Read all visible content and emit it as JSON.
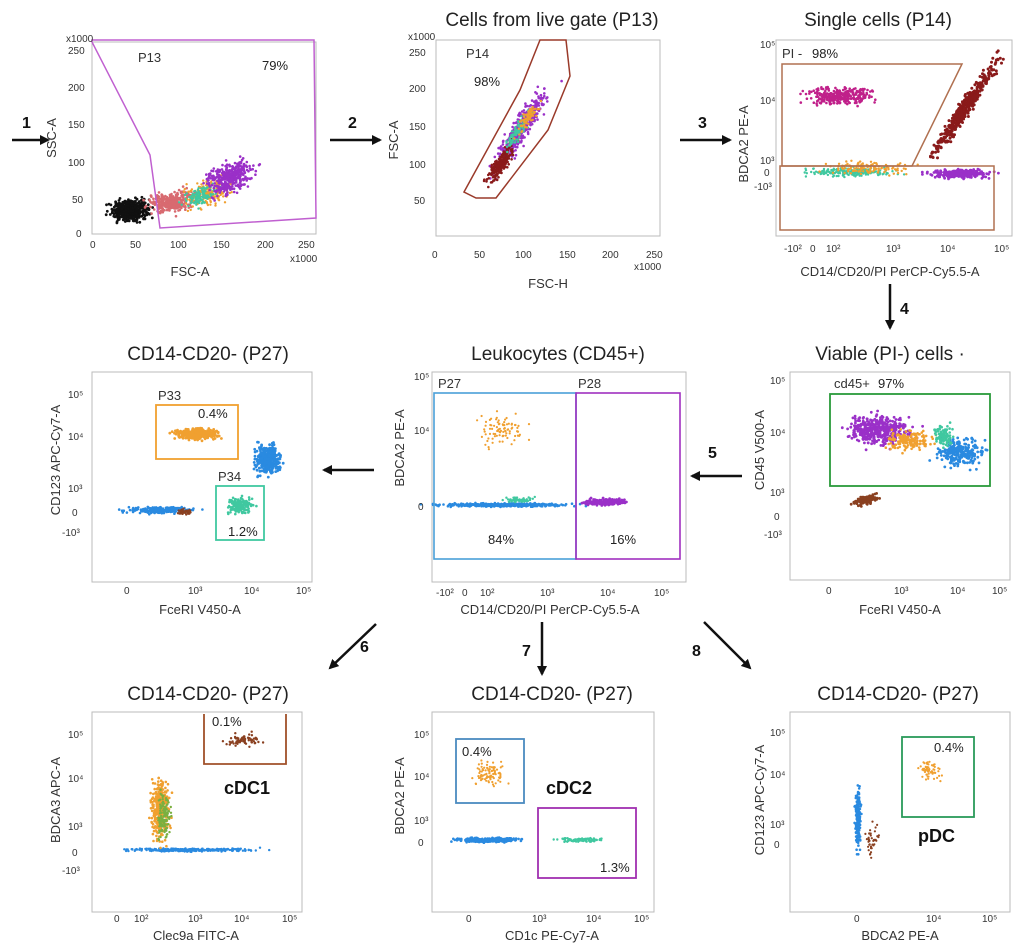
{
  "steps": [
    "1",
    "2",
    "3",
    "4",
    "5",
    "6",
    "7",
    "8"
  ],
  "panels": [
    {
      "id": "p1",
      "title": "",
      "xlabel": "FSC-A",
      "ylabel": "SSC-A",
      "xticks": [
        "0",
        "50",
        "100",
        "150",
        "200",
        "250"
      ],
      "yticks": [
        "0",
        "50",
        "100",
        "150",
        "200",
        "250"
      ],
      "xmult": "x1000",
      "ymult": "x1000",
      "gates": [
        {
          "name": "P13",
          "pct": "79%",
          "color": "#c060d0"
        }
      ]
    },
    {
      "id": "p2",
      "title": "Cells from live gate (P13)",
      "xlabel": "FSC-H",
      "ylabel": "FSC-A",
      "xticks": [
        "0",
        "50",
        "100",
        "150",
        "200",
        "250"
      ],
      "yticks": [
        "50",
        "100",
        "150",
        "200",
        "250"
      ],
      "xmult": "x1000",
      "ymult": "x1000",
      "gates": [
        {
          "name": "P14",
          "pct": "98%",
          "color": "#9a3a2a"
        }
      ]
    },
    {
      "id": "p3",
      "title": "Single cells (P14)",
      "xlabel": "CD14/CD20/PI PerCP-Cy5.5-A",
      "ylabel": "BDCA2 PE-A",
      "xticks": [
        "-10²",
        "0",
        "10²",
        "10³",
        "10⁴",
        "10⁵"
      ],
      "yticks": [
        "10⁵",
        "10⁴",
        "10³",
        "0",
        "-10³"
      ],
      "gates": [
        {
          "name": "PI -",
          "pct": "98%",
          "color": "#b07050"
        }
      ]
    },
    {
      "id": "p4",
      "title": "Viable (PI-) cells ·",
      "xlabel": "FceRI V450-A",
      "ylabel": "CD45 V500-A",
      "xticks": [
        "0",
        "10³",
        "10⁴",
        "10⁵"
      ],
      "yticks": [
        "10⁵",
        "10⁴",
        "10³",
        "0",
        "-10³"
      ],
      "gates": [
        {
          "name": "cd45+",
          "pct": "97%",
          "color": "#2a9a3a"
        }
      ]
    },
    {
      "id": "p5",
      "title": "Leukocytes (CD45+)",
      "xlabel": "CD14/CD20/PI PerCP-Cy5.5-A",
      "ylabel": "BDCA2 PE-A",
      "xticks": [
        "-10²",
        "0",
        "10²",
        "10³",
        "10⁴",
        "10⁵"
      ],
      "yticks": [
        "10⁵",
        "10⁴",
        "0"
      ],
      "gates": [
        {
          "name": "P27",
          "pct": "84%",
          "color": "#4aa0d8"
        },
        {
          "name": "P28",
          "pct": "16%",
          "color": "#a030c0"
        }
      ]
    },
    {
      "id": "p6",
      "title": "CD14-CD20- (P27)",
      "xlabel": "FceRI V450-A",
      "ylabel": "CD123 APC-Cy7-A",
      "xticks": [
        "0",
        "10³",
        "10⁴",
        "10⁵"
      ],
      "yticks": [
        "10⁵",
        "10⁴",
        "10³",
        "0",
        "-10³"
      ],
      "gates": [
        {
          "name": "P33",
          "pct": "0.4%",
          "color": "#f0a030"
        },
        {
          "name": "P34",
          "pct": "1.2%",
          "color": "#40c8a0"
        }
      ]
    },
    {
      "id": "p7",
      "title": "CD14-CD20- (P27)",
      "xlabel": "Clec9a FITC-A",
      "ylabel": "BDCA3 APC-A",
      "xticks": [
        "0",
        "10²",
        "10³",
        "10⁴",
        "10⁵"
      ],
      "yticks": [
        "10⁵",
        "10⁴",
        "10³",
        "0",
        "-10³"
      ],
      "gates": [
        {
          "name": "",
          "pct": "0.1%",
          "color": "#a0502a",
          "cell": "cDC1"
        }
      ]
    },
    {
      "id": "p8",
      "title": "CD14-CD20- (P27)",
      "xlabel": "CD1c PE-Cy7-A",
      "ylabel": "BDCA2 PE-A",
      "xticks": [
        "0",
        "10³",
        "10⁴",
        "10⁵"
      ],
      "yticks": [
        "10⁵",
        "10⁴",
        "10³",
        "0"
      ],
      "gates": [
        {
          "name": "",
          "pct": "0.4%",
          "color": "#4a8ac0"
        },
        {
          "name": "",
          "pct": "1.3%",
          "color": "#a030b0",
          "cell": "cDC2"
        }
      ]
    },
    {
      "id": "p9",
      "title": "CD14-CD20- (P27)",
      "xlabel": "BDCA2 PE-A",
      "ylabel": "CD123 APC-Cy7-A",
      "xticks": [
        "0",
        "10⁴",
        "10⁵"
      ],
      "yticks": [
        "10⁵",
        "10⁴",
        "10³",
        "0"
      ],
      "gates": [
        {
          "name": "",
          "pct": "0.4%",
          "color": "#2a9a5a",
          "cell": "pDC"
        }
      ]
    }
  ],
  "colors": {
    "black": "#111111",
    "salmon": "#d86a70",
    "purple": "#9a30c8",
    "magenta": "#c0208a",
    "orange": "#f0a030",
    "teal": "#40c8a0",
    "blue": "#2a8ae0",
    "brown": "#8a4020",
    "darkred": "#8a1a1a",
    "green": "#7ab040"
  }
}
